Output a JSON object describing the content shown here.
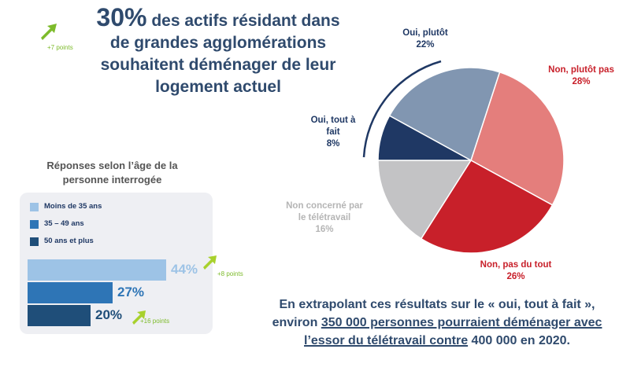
{
  "headline": {
    "figure": "30%",
    "text": "des actifs résidant dans de grandes agglomérations souhaitent déménager de leur logement actuel",
    "change": "+7 points"
  },
  "chart_data": [
    {
      "type": "pie",
      "categories": [
        "Non, plutôt pas",
        "Non, pas du tout",
        "Non concerné par le télétravail",
        "Oui, tout à fait",
        "Oui, plutôt"
      ],
      "values": [
        28,
        26,
        16,
        8,
        22
      ],
      "value_labels": [
        "28%",
        "26%",
        "16%",
        "8%",
        "22%"
      ],
      "colors": [
        "#e47e7c",
        "#c8202a",
        "#c3c3c5",
        "#1f3864",
        "#8196b1"
      ],
      "label_colors": [
        "#c8202a",
        "#c8202a",
        "#b5b5b5",
        "#1f3864",
        "#1f3864"
      ]
    },
    {
      "type": "hbar",
      "title": "Réponses selon l’âge de la personne interrogée",
      "categories": [
        "Moins de 35 ans",
        "35 – 49 ans",
        "50 ans et plus"
      ],
      "values": [
        44,
        27,
        20
      ],
      "value_labels": [
        "44%",
        "27%",
        "20%"
      ],
      "colors": [
        "#9dc3e6",
        "#2e75b6",
        "#1f4e79"
      ],
      "annotations": [
        {
          "text": "+8 points"
        },
        {
          "text": "+16 points"
        }
      ]
    }
  ],
  "note": {
    "intro": "En extrapolant ces résultats sur le « oui, tout à fait », environ",
    "highlight": "350 000 personnes pourraient déménager avec l’essor du télétravail contre",
    "outro": "400 000 en 2020."
  }
}
